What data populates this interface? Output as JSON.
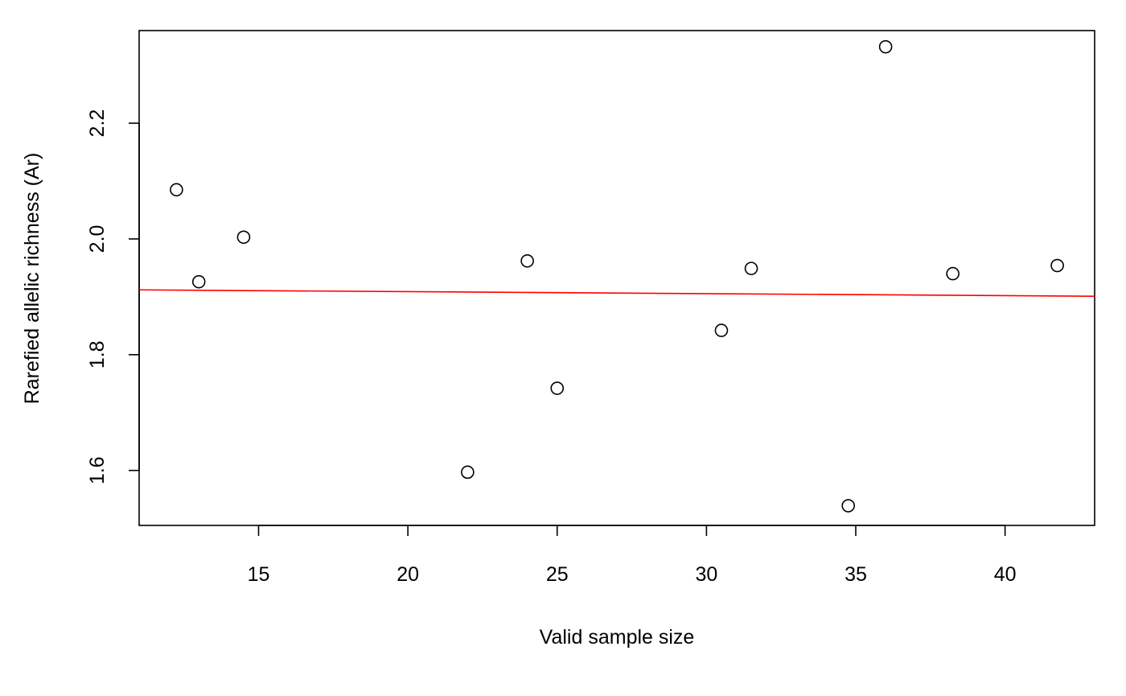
{
  "chart_data": {
    "type": "scatter",
    "xlabel": "Valid sample size",
    "ylabel": "Rarefied allelic richness (Ar)",
    "xlim": [
      11.0,
      43.0
    ],
    "ylim": [
      1.505,
      2.36
    ],
    "x_ticks": [
      15,
      20,
      25,
      30,
      35,
      40
    ],
    "y_ticks": [
      1.6,
      1.8,
      2.0,
      2.2
    ],
    "x_tick_labels": [
      "15",
      "20",
      "25",
      "30",
      "35",
      "40"
    ],
    "y_tick_labels": [
      "1.6",
      "1.8",
      "2.0",
      "2.2"
    ],
    "grid": false,
    "points": [
      {
        "x": 12.25,
        "y": 2.085
      },
      {
        "x": 13.0,
        "y": 1.926
      },
      {
        "x": 14.5,
        "y": 2.003
      },
      {
        "x": 22.0,
        "y": 1.597
      },
      {
        "x": 24.0,
        "y": 1.962
      },
      {
        "x": 25.0,
        "y": 1.742
      },
      {
        "x": 30.5,
        "y": 1.842
      },
      {
        "x": 31.5,
        "y": 1.949
      },
      {
        "x": 34.75,
        "y": 1.539
      },
      {
        "x": 36.0,
        "y": 2.332
      },
      {
        "x": 38.25,
        "y": 1.94
      },
      {
        "x": 41.75,
        "y": 1.954
      }
    ],
    "trend_line": {
      "color": "#ff0000",
      "start": {
        "x": 11.0,
        "y": 1.912
      },
      "end": {
        "x": 43.0,
        "y": 1.901
      }
    },
    "marker_style": "open-circle"
  }
}
